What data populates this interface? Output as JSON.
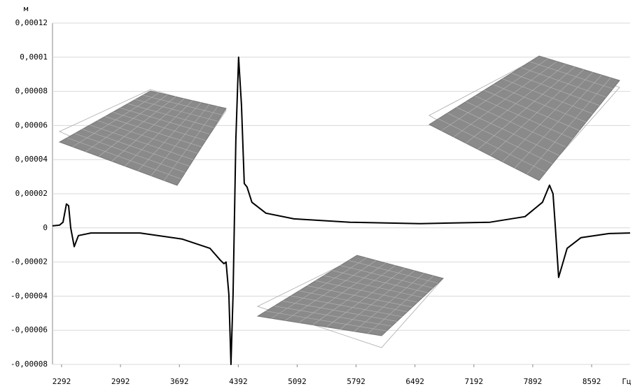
{
  "chart_data": {
    "type": "line",
    "y_axis_label": "м",
    "x_axis_label": "Гц",
    "x": [
      2184,
      2267,
      2309,
      2350,
      2375,
      2400,
      2442,
      2492,
      2641,
      3224,
      3723,
      4056,
      4180,
      4222,
      4247,
      4280,
      4305,
      4330,
      4363,
      4396,
      4430,
      4463,
      4496,
      4554,
      4721,
      5054,
      5720,
      6552,
      7384,
      7800,
      8007,
      8091,
      8133,
      8158,
      8199,
      8241,
      8300,
      8466,
      8799,
      9049
    ],
    "values": [
      1.2e-06,
      1.6e-06,
      3.3e-06,
      1.4e-05,
      1.3e-05,
      0,
      -1.1e-05,
      -4.5e-06,
      -3e-06,
      -3e-06,
      -6.5e-06,
      -1.2e-05,
      -1.9e-05,
      -2.1e-05,
      -2e-05,
      -3.9e-05,
      -8e-05,
      -3.9e-05,
      5.2e-05,
      0.0001,
      7.2e-05,
      2.6e-05,
      2.4e-05,
      1.5e-05,
      8.6e-06,
      5.3e-06,
      3.3e-06,
      2.5e-06,
      3.3e-06,
      6.6e-06,
      1.5e-05,
      2.5e-05,
      2e-05,
      2.5e-06,
      -2.9e-05,
      -2.2e-05,
      -1.2e-05,
      -5.7e-06,
      -3.3e-06,
      -3e-06
    ],
    "color": "#000000",
    "xlim": [
      2184,
      9049
    ],
    "xticks": [
      2292,
      2992,
      3692,
      4392,
      5092,
      5792,
      6492,
      7192,
      7892,
      8592
    ],
    "ylim": [
      -8e-05,
      0.00012
    ],
    "yticks": [
      {
        "value": -8e-05,
        "label": "-0,00008"
      },
      {
        "value": -6e-05,
        "label": "-0,00006"
      },
      {
        "value": -4e-05,
        "label": "-0,00004"
      },
      {
        "value": -2e-05,
        "label": "-0,00002"
      },
      0,
      {
        "value": 2e-05,
        "label": "0,00002"
      },
      {
        "value": 4e-05,
        "label": "0,00004"
      },
      {
        "value": 6e-05,
        "label": "0,00006"
      },
      {
        "value": 8e-05,
        "label": "0,00008"
      },
      {
        "value": 0.0001,
        "label": "0,0001"
      },
      {
        "value": 0.00012,
        "label": "0,00012"
      }
    ],
    "grid": true
  }
}
